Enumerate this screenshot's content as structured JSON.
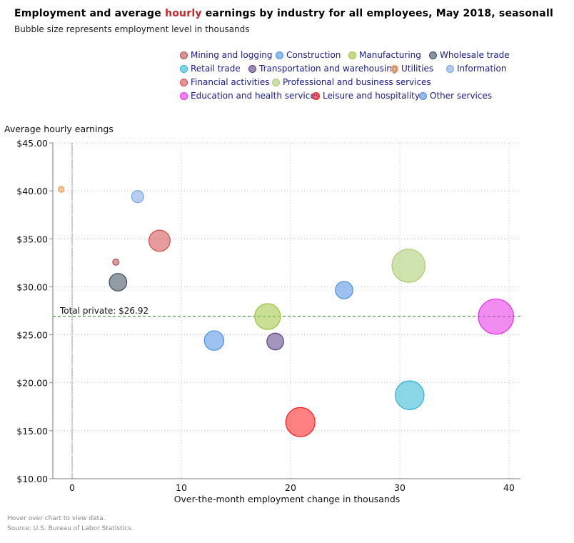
{
  "title": {
    "before": "Employment and average ",
    "highlight": "hourly",
    "after": " earnings by industry for all employees, May 2018, seasonall"
  },
  "subtitle": "Bubble size represents employment level in thousands",
  "footer": {
    "hint": "Hover over chart to view data.",
    "source": "Source: U.S. Bureau of Labor Statistics."
  },
  "chart_data": {
    "type": "bubble",
    "xlabel": "Over-the-month employment change in thousands",
    "ylabel": "Average hourly earnings",
    "xlim": [
      -1.8,
      41
    ],
    "ylim": [
      10,
      45
    ],
    "xticks": [
      "0",
      "10",
      "20",
      "30",
      "40"
    ],
    "yticks": [
      "$10.00",
      "$15.00",
      "$20.00",
      "$25.00",
      "$30.00",
      "$35.00",
      "$40.00",
      "$45.00"
    ],
    "grid": true,
    "legend_position": "top-right",
    "reference_line": {
      "label": "Total private: $26.92",
      "y": 26.92,
      "color": "#1f7a1f"
    },
    "series": [
      {
        "name": "Mining and logging",
        "x": 4,
        "y": 32.57,
        "z": 730,
        "color": "#b84a4a"
      },
      {
        "name": "Construction",
        "x": 13,
        "y": 24.4,
        "z": 7300,
        "color": "#4a90e2"
      },
      {
        "name": "Manufacturing",
        "x": 17.9,
        "y": 26.9,
        "z": 12700,
        "color": "#9ac43c"
      },
      {
        "name": "Wholesale trade",
        "x": 4.2,
        "y": 30.48,
        "z": 5900,
        "color": "#3a4a5c"
      },
      {
        "name": "Retail trade",
        "x": 30.9,
        "y": 18.7,
        "z": 15900,
        "color": "#2bb5d4"
      },
      {
        "name": "Transportation and warehousing",
        "x": 18.6,
        "y": 24.3,
        "z": 5400,
        "color": "#5a3e85"
      },
      {
        "name": "Utilities",
        "x": -1,
        "y": 40.16,
        "z": 550,
        "color": "#f09a4a"
      },
      {
        "name": "Information",
        "x": 6,
        "y": 39.4,
        "z": 2800,
        "color": "#7ba6e8"
      },
      {
        "name": "Financial activities",
        "x": 8,
        "y": 34.8,
        "z": 8600,
        "color": "#d44a4a"
      },
      {
        "name": "Professional and business services",
        "x": 30.8,
        "y": 32.2,
        "z": 21000,
        "color": "#a8cc6e"
      },
      {
        "name": "Education and health services",
        "x": 38.8,
        "y": 26.9,
        "z": 23700,
        "color": "#e52ee5"
      },
      {
        "name": "Leisure and hospitality",
        "x": 20.9,
        "y": 15.9,
        "z": 16300,
        "color": "#ff1a1a"
      },
      {
        "name": "Other services",
        "x": 24.9,
        "y": 29.66,
        "z": 5800,
        "color": "#4a8ee0"
      }
    ]
  }
}
